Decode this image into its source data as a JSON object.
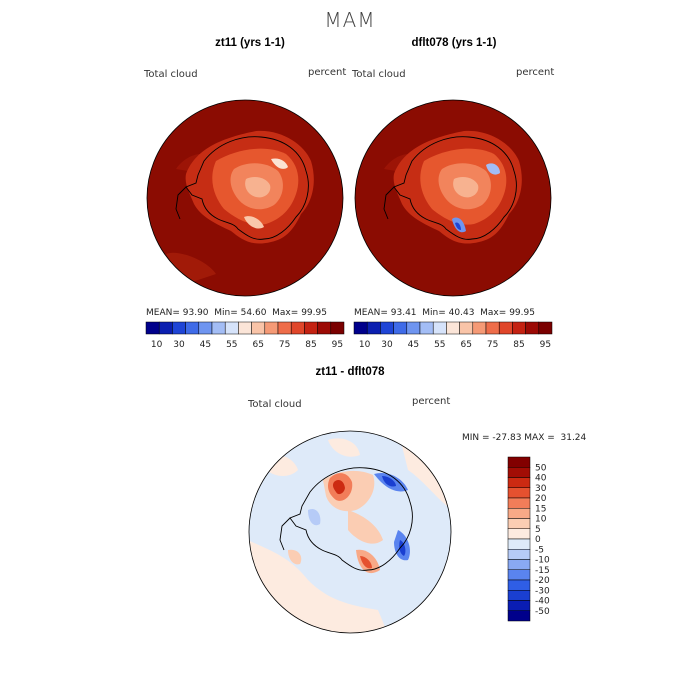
{
  "figure": {
    "season": "MAM"
  },
  "panels": [
    {
      "title": "zt11 (yrs 1-1)",
      "field_label": "Total cloud",
      "units_label": "percent",
      "stats": {
        "mean_label": "MEAN=",
        "mean": "93.90",
        "min_label": "Min=",
        "min": "54.60",
        "max_label": "Max=",
        "max": "99.95"
      }
    },
    {
      "title": "dflt078 (yrs 1-1)",
      "field_label": "Total cloud",
      "units_label": "percent",
      "stats": {
        "mean_label": "MEAN=",
        "mean": "93.41",
        "min_label": "Min=",
        "min": "40.43",
        "max_label": "Max=",
        "max": "99.95"
      }
    }
  ],
  "colorbar_top": {
    "colors": [
      "#00008b",
      "#0b1fb0",
      "#1f45d6",
      "#3f6be8",
      "#6f95f0",
      "#a3bdf5",
      "#d6e3fa",
      "#fbe5d8",
      "#f9c4a8",
      "#f59a76",
      "#ee6d4a",
      "#e0462a",
      "#c42212",
      "#9c0a05",
      "#7a0000"
    ],
    "tick_labels": [
      "10",
      "30",
      "45",
      "55",
      "65",
      "75",
      "85",
      "95"
    ]
  },
  "difference": {
    "title": "zt11 - dflt078",
    "field_label": "Total cloud",
    "units_label": "percent",
    "minmax_text": "MIN = -27.83 MAX =  31.24",
    "colorbar": {
      "colors": [
        "#00008b",
        "#0a1db3",
        "#1a3fd1",
        "#2f5ee6",
        "#5a84ef",
        "#89a9f3",
        "#b6cbf7",
        "#deeaf9",
        "#fdebe0",
        "#fbcdb3",
        "#f8a987",
        "#f27d59",
        "#e5512f",
        "#cc2a12",
        "#a20d05",
        "#820000"
      ],
      "tick_labels": [
        "50",
        "40",
        "30",
        "20",
        "15",
        "10",
        "5",
        "0",
        "-5",
        "-10",
        "-15",
        "-20",
        "-30",
        "-40",
        "-50"
      ]
    }
  }
}
